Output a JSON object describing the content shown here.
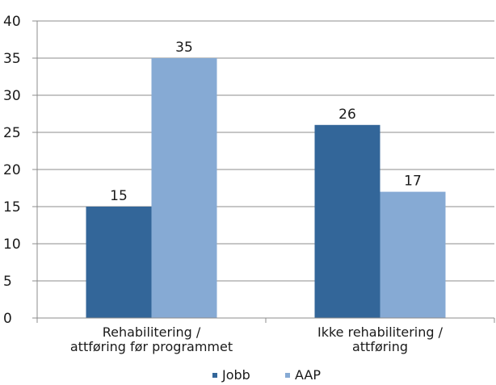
{
  "chart_data": {
    "type": "bar",
    "categories": [
      [
        "Rehabilitering /",
        "attføring før programmet"
      ],
      [
        "Ikke rehabilitering /",
        "attføring"
      ]
    ],
    "series": [
      {
        "name": "Jobb",
        "values": [
          15,
          26
        ],
        "color": "#336699"
      },
      {
        "name": "AAP",
        "values": [
          35,
          17
        ],
        "color": "#86AAD4"
      }
    ],
    "yticks": [
      0,
      5,
      10,
      15,
      20,
      25,
      30,
      35,
      40
    ],
    "ylim": [
      0,
      40
    ],
    "grid": true,
    "legend": "bottom-center",
    "title": "",
    "xlabel": "",
    "ylabel": ""
  },
  "colors": {
    "grid": "#8c8c8c",
    "axis": "#8c8c8c",
    "text": "#1a1a1a"
  }
}
